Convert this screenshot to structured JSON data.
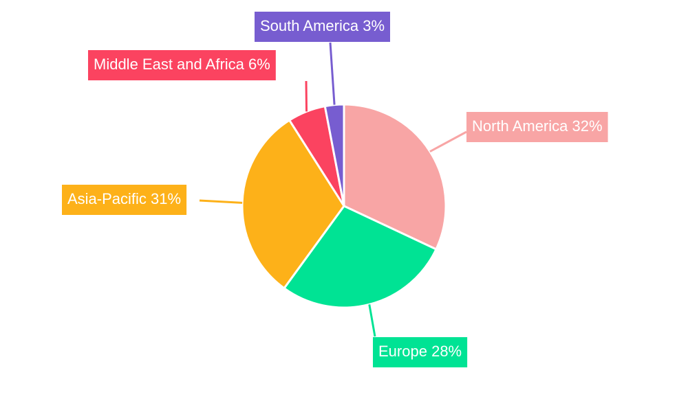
{
  "chart_data": {
    "type": "pie",
    "categories": [
      "North America",
      "Europe",
      "Asia-Pacific",
      "Middle East and Africa",
      "South America"
    ],
    "values": [
      32,
      28,
      31,
      6,
      3
    ],
    "value_labels": [
      "32%",
      "28%",
      "31%",
      "6%",
      "3%"
    ],
    "colors": [
      "#f8a5a5",
      "#00e394",
      "#fdb119",
      "#fb4360",
      "#775dd0"
    ]
  }
}
